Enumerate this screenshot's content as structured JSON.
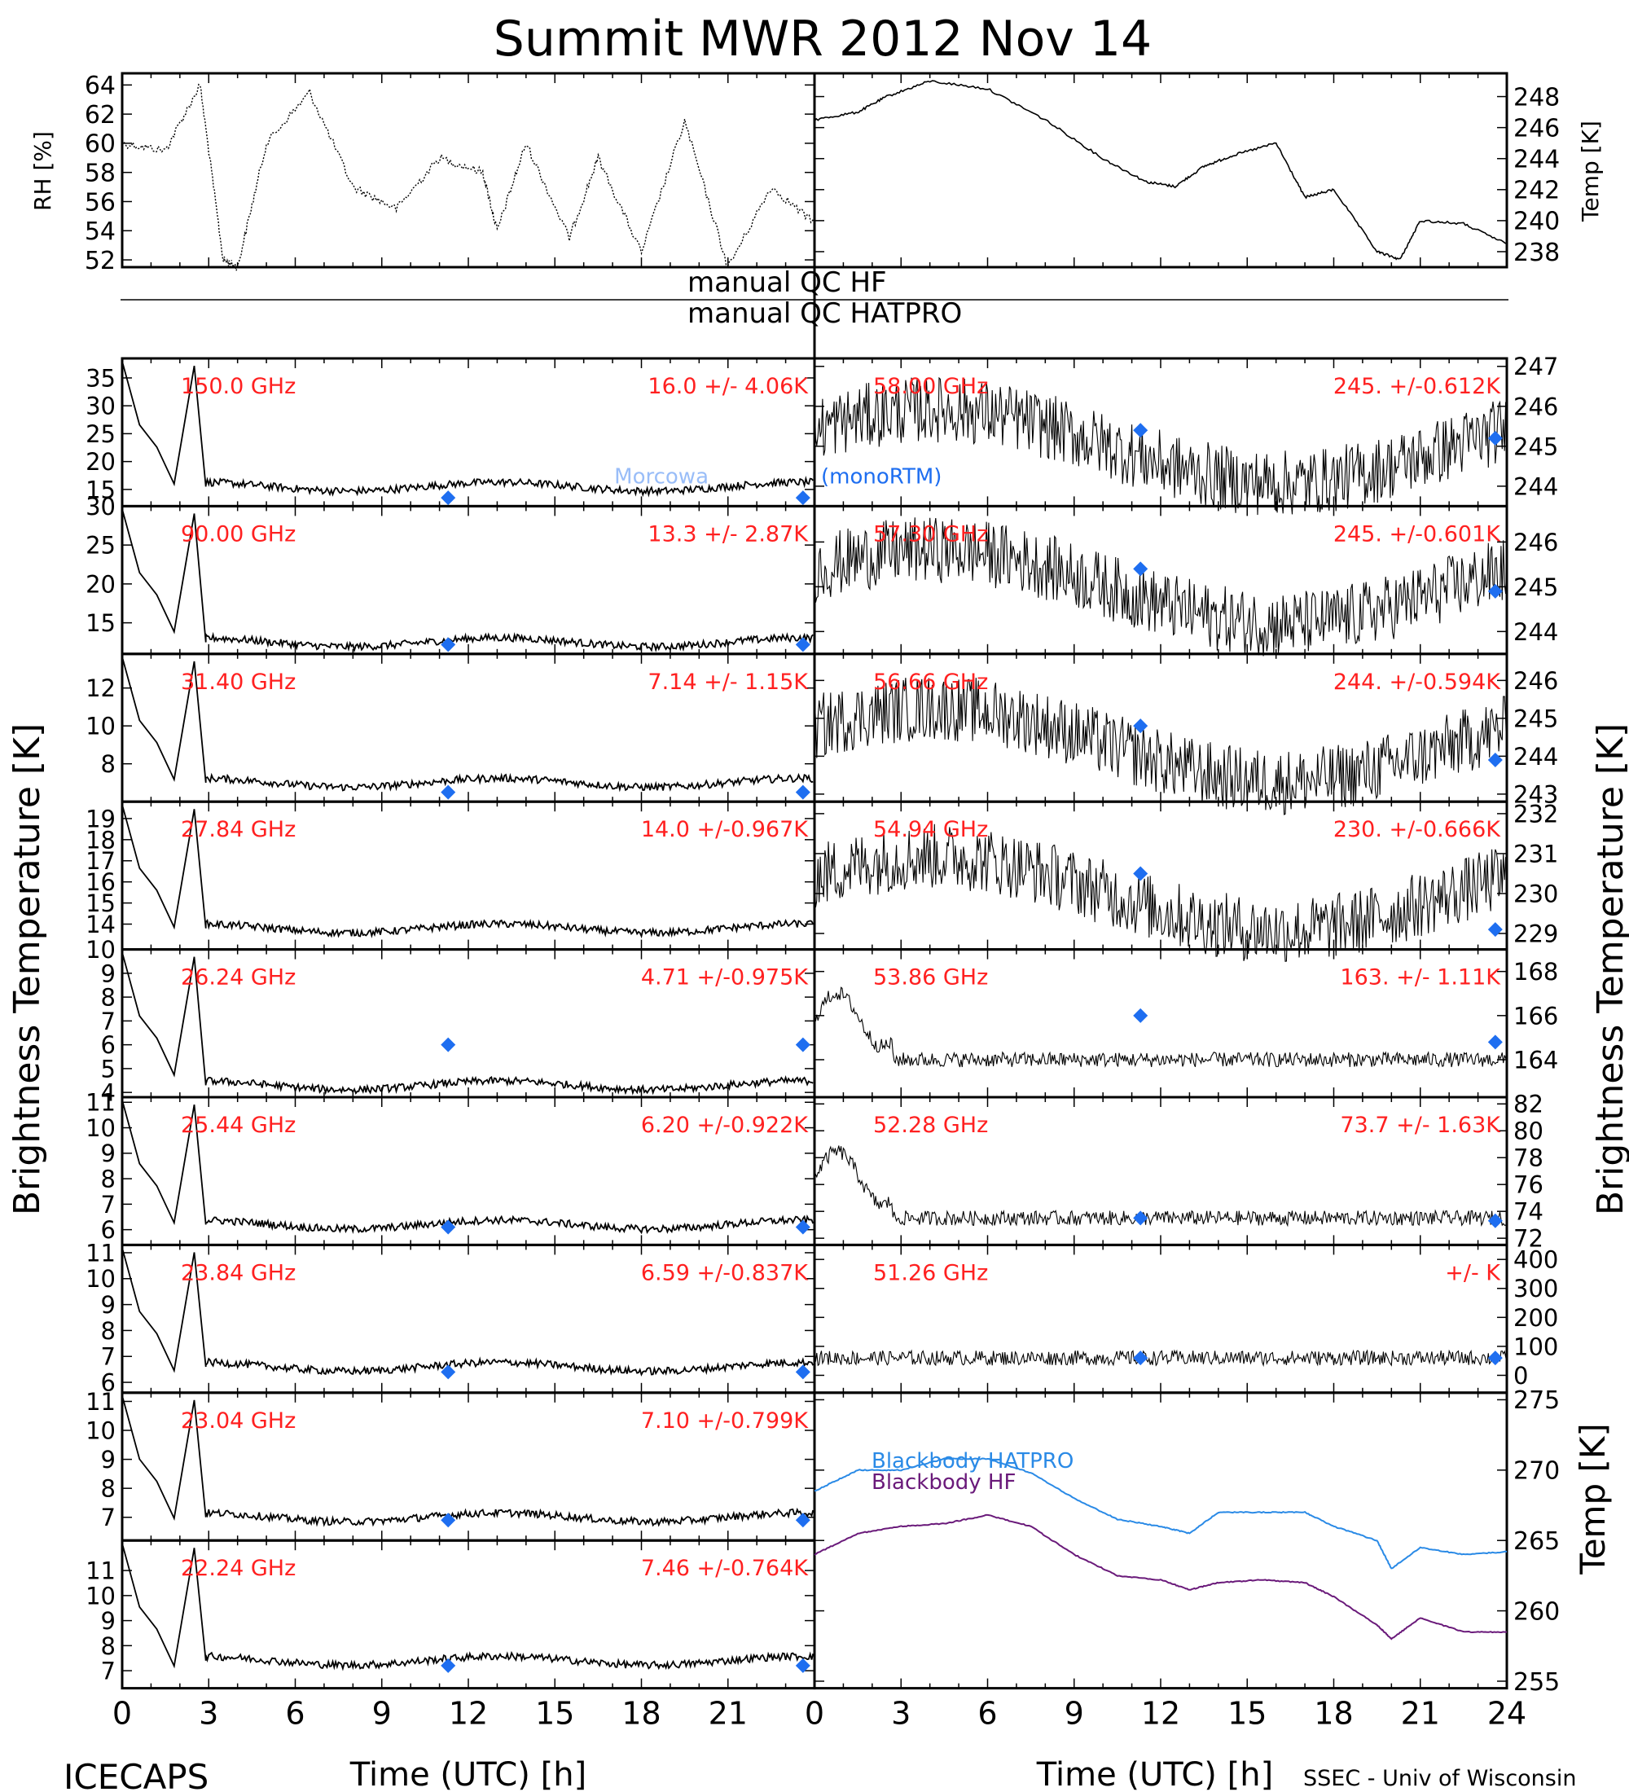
{
  "title": "Summit MWR 2012 Nov 14",
  "footer": {
    "left": "ICECAPS",
    "right": "SSEC - Univ of Wisconsin"
  },
  "x_axis": {
    "label": "Time (UTC) [h]",
    "left_ticks": [
      "0",
      "3",
      "6",
      "9",
      "12",
      "15",
      "18",
      "21"
    ],
    "right_ticks": [
      "0",
      "3",
      "6",
      "9",
      "12",
      "15",
      "18",
      "21",
      "24"
    ]
  },
  "left_ylabel": "Brightness Temperature [K]",
  "right_ylabel": "Brightness Temperature [K]",
  "qc_text": {
    "hf": "manual QC HF",
    "hatpro": "manual QC HATPRO"
  },
  "colors": {
    "trace": "#000000",
    "label": "#ff2020",
    "diamond": "#1e6ef0",
    "bb_hatpro": "#2a8ae6",
    "bb_hf": "#6a1a7a"
  },
  "chart_data": [
    {
      "type": "line",
      "panel": "RH",
      "ylabel": "RH [%]",
      "ylim": [
        51.5,
        64.8
      ],
      "yticks": [
        "52",
        "54",
        "56",
        "58",
        "60",
        "62",
        "64"
      ],
      "x": [
        0,
        1.5,
        2.7,
        3.5,
        4,
        5,
        6.5,
        8,
        9.5,
        11,
        12.5,
        13,
        14,
        15.5,
        16.5,
        18,
        19.5,
        21,
        22.5,
        24
      ],
      "values": [
        60,
        59.5,
        64,
        52,
        51.5,
        60,
        63.5,
        57,
        55.5,
        59,
        58,
        54,
        60,
        53.5,
        59,
        52.5,
        61.5,
        51.5,
        57,
        54.5
      ]
    },
    {
      "type": "line",
      "panel": "Temp",
      "ylabel": "Temp [K]",
      "ylim": [
        237,
        249.5
      ],
      "yticks": [
        "238",
        "240",
        "242",
        "244",
        "246",
        "248"
      ],
      "x": [
        0,
        1.5,
        2.5,
        4,
        6,
        8,
        10,
        11.5,
        12.5,
        13.5,
        14.5,
        16,
        17,
        18,
        19.5,
        20.3,
        21,
        22.5,
        24
      ],
      "values": [
        246.5,
        247,
        248,
        249,
        248.5,
        246.5,
        244,
        242.5,
        242.2,
        243.5,
        244.2,
        245,
        241.5,
        242,
        238,
        237.5,
        240,
        239.8,
        238.5
      ]
    },
    {
      "type": "scatter",
      "panel": "Tb",
      "freq": "150.0 GHz",
      "stats": "16.0 +/- 4.06K",
      "ylim": [
        12,
        38.5
      ],
      "yticks": [
        "15",
        "20",
        "25",
        "30",
        "35"
      ],
      "level": 15.5,
      "diamonds": [
        {
          "x": 11.3,
          "y": 13.5
        },
        {
          "x": 23.6,
          "y": 13.5
        }
      ],
      "annotation": "monoRTM",
      "annotation_faded": "Morcowa"
    },
    {
      "type": "scatter",
      "panel": "Tb",
      "freq": "90.00 GHz",
      "stats": "13.3 +/- 2.87K",
      "ylim": [
        11,
        30
      ],
      "yticks": [
        "15",
        "20",
        "25",
        "30"
      ],
      "level": 12.5,
      "diamonds": [
        {
          "x": 11.3,
          "y": 12.2
        },
        {
          "x": 23.6,
          "y": 12.2
        }
      ]
    },
    {
      "type": "scatter",
      "panel": "Tb",
      "freq": "31.40 GHz",
      "stats": "7.14 +/- 1.15K",
      "ylim": [
        6,
        13.8
      ],
      "yticks": [
        "8",
        "10",
        "12"
      ],
      "level": 7,
      "diamonds": [
        {
          "x": 11.3,
          "y": 6.5
        },
        {
          "x": 23.6,
          "y": 6.5
        }
      ]
    },
    {
      "type": "scatter",
      "panel": "Tb",
      "freq": "27.84 GHz",
      "stats": "14.0 +/-0.967K",
      "ylim": [
        12.8,
        19.8
      ],
      "yticks": [
        "14",
        "15",
        "16",
        "17",
        "18",
        "19"
      ],
      "level": 13.8
    },
    {
      "type": "scatter",
      "panel": "Tb",
      "freq": "26.24 GHz",
      "stats": "4.71 +/-0.975K",
      "ylim": [
        3.8,
        10
      ],
      "yticks": [
        "4",
        "5",
        "6",
        "7",
        "8",
        "9",
        "10"
      ],
      "level": 4.3,
      "diamonds": [
        {
          "x": 11.3,
          "y": 6
        },
        {
          "x": 23.6,
          "y": 6
        }
      ]
    },
    {
      "type": "scatter",
      "panel": "Tb",
      "freq": "25.44 GHz",
      "stats": "6.20 +/-0.922K",
      "ylim": [
        5.4,
        11.2
      ],
      "yticks": [
        "6",
        "7",
        "8",
        "9",
        "10",
        "11"
      ],
      "level": 6.2,
      "diamonds": [
        {
          "x": 11.3,
          "y": 6.1
        },
        {
          "x": 23.6,
          "y": 6.1
        }
      ]
    },
    {
      "type": "scatter",
      "panel": "Tb",
      "freq": "23.84 GHz",
      "stats": "6.59 +/-0.837K",
      "ylim": [
        5.6,
        11.3
      ],
      "yticks": [
        "6",
        "7",
        "8",
        "9",
        "10",
        "11"
      ],
      "level": 6.6,
      "diamonds": [
        {
          "x": 11.3,
          "y": 6.4
        },
        {
          "x": 23.6,
          "y": 6.4
        }
      ]
    },
    {
      "type": "scatter",
      "panel": "Tb",
      "freq": "23.04 GHz",
      "stats": "7.10 +/-0.799K",
      "ylim": [
        6.2,
        11.3
      ],
      "yticks": [
        "7",
        "8",
        "9",
        "10",
        "11"
      ],
      "level": 7.0,
      "diamonds": [
        {
          "x": 11.3,
          "y": 6.9
        },
        {
          "x": 23.6,
          "y": 6.9
        }
      ]
    },
    {
      "type": "scatter",
      "panel": "Tb",
      "freq": "22.24 GHz",
      "stats": "7.46 +/-0.764K",
      "ylim": [
        6.3,
        12.2
      ],
      "yticks": [
        "7",
        "8",
        "9",
        "10",
        "11"
      ],
      "level": 7.4,
      "diamonds": [
        {
          "x": 11.3,
          "y": 7.2
        },
        {
          "x": 23.6,
          "y": 7.2
        }
      ]
    },
    {
      "type": "scatter",
      "panel": "Tb",
      "freq": "58.00 GHz",
      "stats": "245. +/-0.612K",
      "ylim": [
        243.5,
        247.2
      ],
      "yticks": [
        "244",
        "245",
        "246",
        "247"
      ],
      "level": 245,
      "diamonds": [
        {
          "x": 11.3,
          "y": 245.4
        },
        {
          "x": 23.6,
          "y": 245.2
        }
      ]
    },
    {
      "type": "scatter",
      "panel": "Tb",
      "freq": "57.30 GHz",
      "stats": "245. +/-0.601K",
      "ylim": [
        243.5,
        246.8
      ],
      "yticks": [
        "244",
        "245",
        "246"
      ],
      "level": 245,
      "diamonds": [
        {
          "x": 11.3,
          "y": 245.4
        },
        {
          "x": 23.6,
          "y": 244.9
        }
      ]
    },
    {
      "type": "scatter",
      "panel": "Tb",
      "freq": "56.66 GHz",
      "stats": "244. +/-0.594K",
      "ylim": [
        242.8,
        246.7
      ],
      "yticks": [
        "243",
        "244",
        "245",
        "246"
      ],
      "level": 244.3,
      "diamonds": [
        {
          "x": 11.3,
          "y": 244.8
        },
        {
          "x": 23.6,
          "y": 243.9
        }
      ]
    },
    {
      "type": "scatter",
      "panel": "Tb",
      "freq": "54.94 GHz",
      "stats": "230. +/-0.666K",
      "ylim": [
        228.6,
        232.3
      ],
      "yticks": [
        "229",
        "230",
        "231",
        "232"
      ],
      "level": 230,
      "diamonds": [
        {
          "x": 11.3,
          "y": 230.5
        },
        {
          "x": 23.6,
          "y": 229.1
        }
      ]
    },
    {
      "type": "scatter",
      "panel": "Tb",
      "freq": "53.86 GHz",
      "stats": "163. +/- 1.11K",
      "ylim": [
        162.3,
        169
      ],
      "yticks": [
        "164",
        "166",
        "168"
      ],
      "level": 164,
      "diamonds": [
        {
          "x": 11.3,
          "y": 166
        },
        {
          "x": 23.6,
          "y": 164.8
        }
      ]
    },
    {
      "type": "scatter",
      "panel": "Tb",
      "freq": "52.28 GHz",
      "stats": "73.7 +/- 1.63K",
      "ylim": [
        71.5,
        82.5
      ],
      "yticks": [
        "72",
        "74",
        "76",
        "78",
        "80",
        "82"
      ],
      "level": 73.5,
      "diamonds": [
        {
          "x": 11.3,
          "y": 73.5
        },
        {
          "x": 23.6,
          "y": 73.3
        }
      ]
    },
    {
      "type": "scatter",
      "panel": "Tb",
      "freq": "51.26 GHz",
      "stats": "+/- K",
      "ylim": [
        -60,
        450
      ],
      "yticks": [
        "0",
        "100",
        "200",
        "300",
        "400"
      ],
      "level": 60,
      "diamonds": [
        {
          "x": 11.3,
          "y": 60
        },
        {
          "x": 23.6,
          "y": 60
        }
      ]
    },
    {
      "type": "line",
      "panel": "Blackbody",
      "ylabel": "Temp [K]",
      "ylim": [
        254.5,
        275.5
      ],
      "yticks": [
        "255",
        "260",
        "265",
        "270",
        "275"
      ],
      "series": [
        {
          "name": "Blackbody HATPRO",
          "x": [
            0,
            1.5,
            3,
            4.5,
            6,
            7.5,
            9,
            10.5,
            12,
            13,
            14,
            15.5,
            17,
            18,
            19.5,
            20,
            21,
            22.5,
            24
          ],
          "values": [
            268.5,
            270,
            270,
            270.8,
            270.8,
            269.8,
            268,
            266.5,
            266,
            265.5,
            267,
            267,
            267,
            266,
            265,
            263,
            264.5,
            264,
            264.2
          ]
        },
        {
          "name": "Blackbody HF",
          "x": [
            0,
            1.5,
            3,
            4.5,
            6,
            7.5,
            9,
            10.5,
            12,
            13,
            14,
            15.5,
            17,
            18,
            19.5,
            20,
            21,
            22.5,
            24
          ],
          "values": [
            264,
            265.5,
            266,
            266.2,
            266.8,
            266,
            264,
            262.5,
            262.2,
            261.5,
            262,
            262.2,
            262,
            261,
            259,
            258,
            259.5,
            258.5,
            258.5
          ]
        }
      ]
    }
  ]
}
